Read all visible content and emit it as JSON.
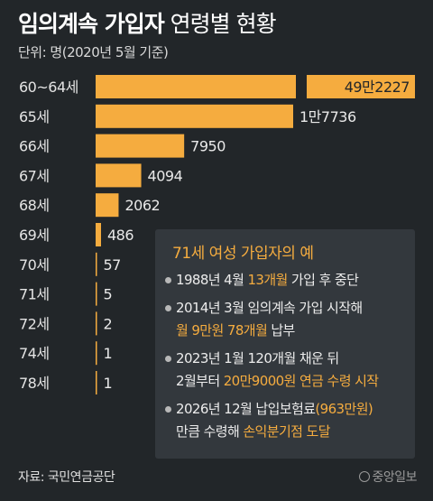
{
  "title": {
    "bold": "임의계속 가입자",
    "light": "연령별 현황"
  },
  "unit": "단위: 명(2020년 5월 기준)",
  "chart_data": {
    "type": "bar",
    "orientation": "horizontal",
    "categories": [
      "60~64세",
      "65세",
      "66세",
      "67세",
      "68세",
      "69세",
      "70세",
      "71세",
      "72세",
      "74세",
      "78세"
    ],
    "values": [
      492227,
      17736,
      7950,
      4094,
      2062,
      486,
      57,
      5,
      2,
      1,
      1
    ],
    "value_labels": [
      "49만2227",
      "1만7736",
      "7950",
      "4094",
      "2062",
      "486",
      "57",
      "5",
      "2",
      "1",
      "1"
    ],
    "scale_break": "first bar truncated",
    "bar_color": "#f5ac3f"
  },
  "info": {
    "title": "71세 여성 가입자의 예",
    "items": [
      {
        "lines": [
          [
            {
              "t": "1988년 4월 "
            },
            {
              "t": "13개월",
              "hl": true
            },
            {
              "t": " 가입 후 중단"
            }
          ]
        ]
      },
      {
        "lines": [
          [
            {
              "t": "2014년 3월 임의계속 가입 시작해"
            }
          ],
          [
            {
              "t": "월 9만원 78개월",
              "hl": true
            },
            {
              "t": " 납부"
            }
          ]
        ]
      },
      {
        "lines": [
          [
            {
              "t": "2023년 1월 120개월 채운 뒤"
            }
          ],
          [
            {
              "t": "2월부터 "
            },
            {
              "t": "20만9000원 연금 수령 시작",
              "hl": true
            }
          ]
        ]
      },
      {
        "lines": [
          [
            {
              "t": "2026년 12월 납입보험료"
            },
            {
              "t": "(963만원)",
              "hl": true
            }
          ],
          [
            {
              "t": "만큼 수령해 "
            },
            {
              "t": "손익분기점 도달",
              "hl": true
            }
          ]
        ]
      }
    ]
  },
  "source": "자료: 국민연금공단",
  "logo": "중앙일보"
}
